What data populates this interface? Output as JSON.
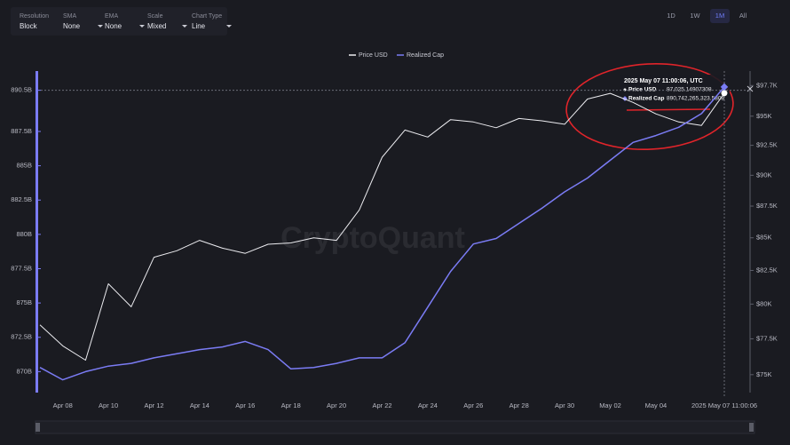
{
  "toolbar": {
    "controls": [
      {
        "label": "Resolution",
        "value": "Block"
      },
      {
        "label": "SMA",
        "value": "None"
      },
      {
        "label": "EMA",
        "value": "None"
      },
      {
        "label": "Scale",
        "value": "Mixed"
      },
      {
        "label": "Chart Type",
        "value": "Line"
      }
    ],
    "ranges": [
      "1D",
      "1W",
      "1M",
      "All"
    ]
  },
  "chart_data": {
    "type": "line",
    "watermark": "CryptoQuant",
    "categories": [
      null,
      "Apr 08",
      null,
      "Apr 10",
      null,
      "Apr 12",
      null,
      "Apr 14",
      null,
      "Apr 16",
      null,
      "Apr 18",
      null,
      "Apr 20",
      null,
      "Apr 22",
      null,
      "Apr 24",
      null,
      "Apr 26",
      null,
      "Apr 28",
      null,
      "Apr 30",
      null,
      "May 02",
      null,
      "May 04",
      null,
      null,
      "2025 May 07 11:00:06"
    ],
    "series": [
      {
        "name": "Price USD",
        "color": "#ececf0",
        "axis": "y2",
        "values": [
          78500,
          77000,
          76000,
          81500,
          79800,
          83500,
          84000,
          84800,
          84200,
          83800,
          84500,
          84600,
          85000,
          84800,
          87200,
          91500,
          93800,
          93200,
          94700,
          94500,
          94000,
          94800,
          94600,
          94300,
          96500,
          97000,
          96200,
          95200,
          94500,
          94200,
          97025.15
        ]
      },
      {
        "name": "Realized Cap",
        "color": "#7b7cf5",
        "values": [
          870.3,
          869.4,
          870.0,
          870.4,
          870.6,
          871.0,
          871.3,
          871.6,
          871.8,
          872.2,
          871.6,
          870.2,
          870.3,
          870.6,
          871.0,
          871.0,
          872.1,
          874.7,
          877.3,
          879.3,
          879.7,
          880.8,
          881.9,
          883.1,
          884.1,
          885.4,
          886.7,
          887.2,
          887.8,
          888.8,
          890.74
        ]
      }
    ],
    "ylim": [
      868.6,
      891.9
    ],
    "yticks": [
      {
        "value": 870,
        "label": "870B"
      },
      {
        "value": 872.5,
        "label": "872.5B"
      },
      {
        "value": 875,
        "label": "875B"
      },
      {
        "value": 877.5,
        "label": "877.5B"
      },
      {
        "value": 880,
        "label": "880B"
      },
      {
        "value": 882.5,
        "label": "882.5B"
      },
      {
        "value": 885,
        "label": "885B"
      },
      {
        "value": 887.5,
        "label": "887.5B"
      },
      {
        "value": 890.5,
        "label": "890.5B"
      }
    ],
    "y2lim": [
      73900,
      99000
    ],
    "y2_log": true,
    "y2ticks": [
      {
        "value": 75000,
        "label": "$75K"
      },
      {
        "value": 77500,
        "label": "$77.5K"
      },
      {
        "value": 80000,
        "label": "$80K"
      },
      {
        "value": 82500,
        "label": "$82.5K"
      },
      {
        "value": 85000,
        "label": "$85K"
      },
      {
        "value": 87500,
        "label": "$87.5K"
      },
      {
        "value": 90000,
        "label": "$90K"
      },
      {
        "value": 92500,
        "label": "$92.5K"
      },
      {
        "value": 95000,
        "label": "$95K"
      },
      {
        "value": 97700,
        "label": "$97.7K"
      }
    ],
    "grid": false,
    "legend": "top",
    "tooltip": {
      "title": "2025 May 07 11:00:06, UTC",
      "values": [
        "97,025.14907308",
        "890,742,265,323.5808"
      ]
    }
  }
}
